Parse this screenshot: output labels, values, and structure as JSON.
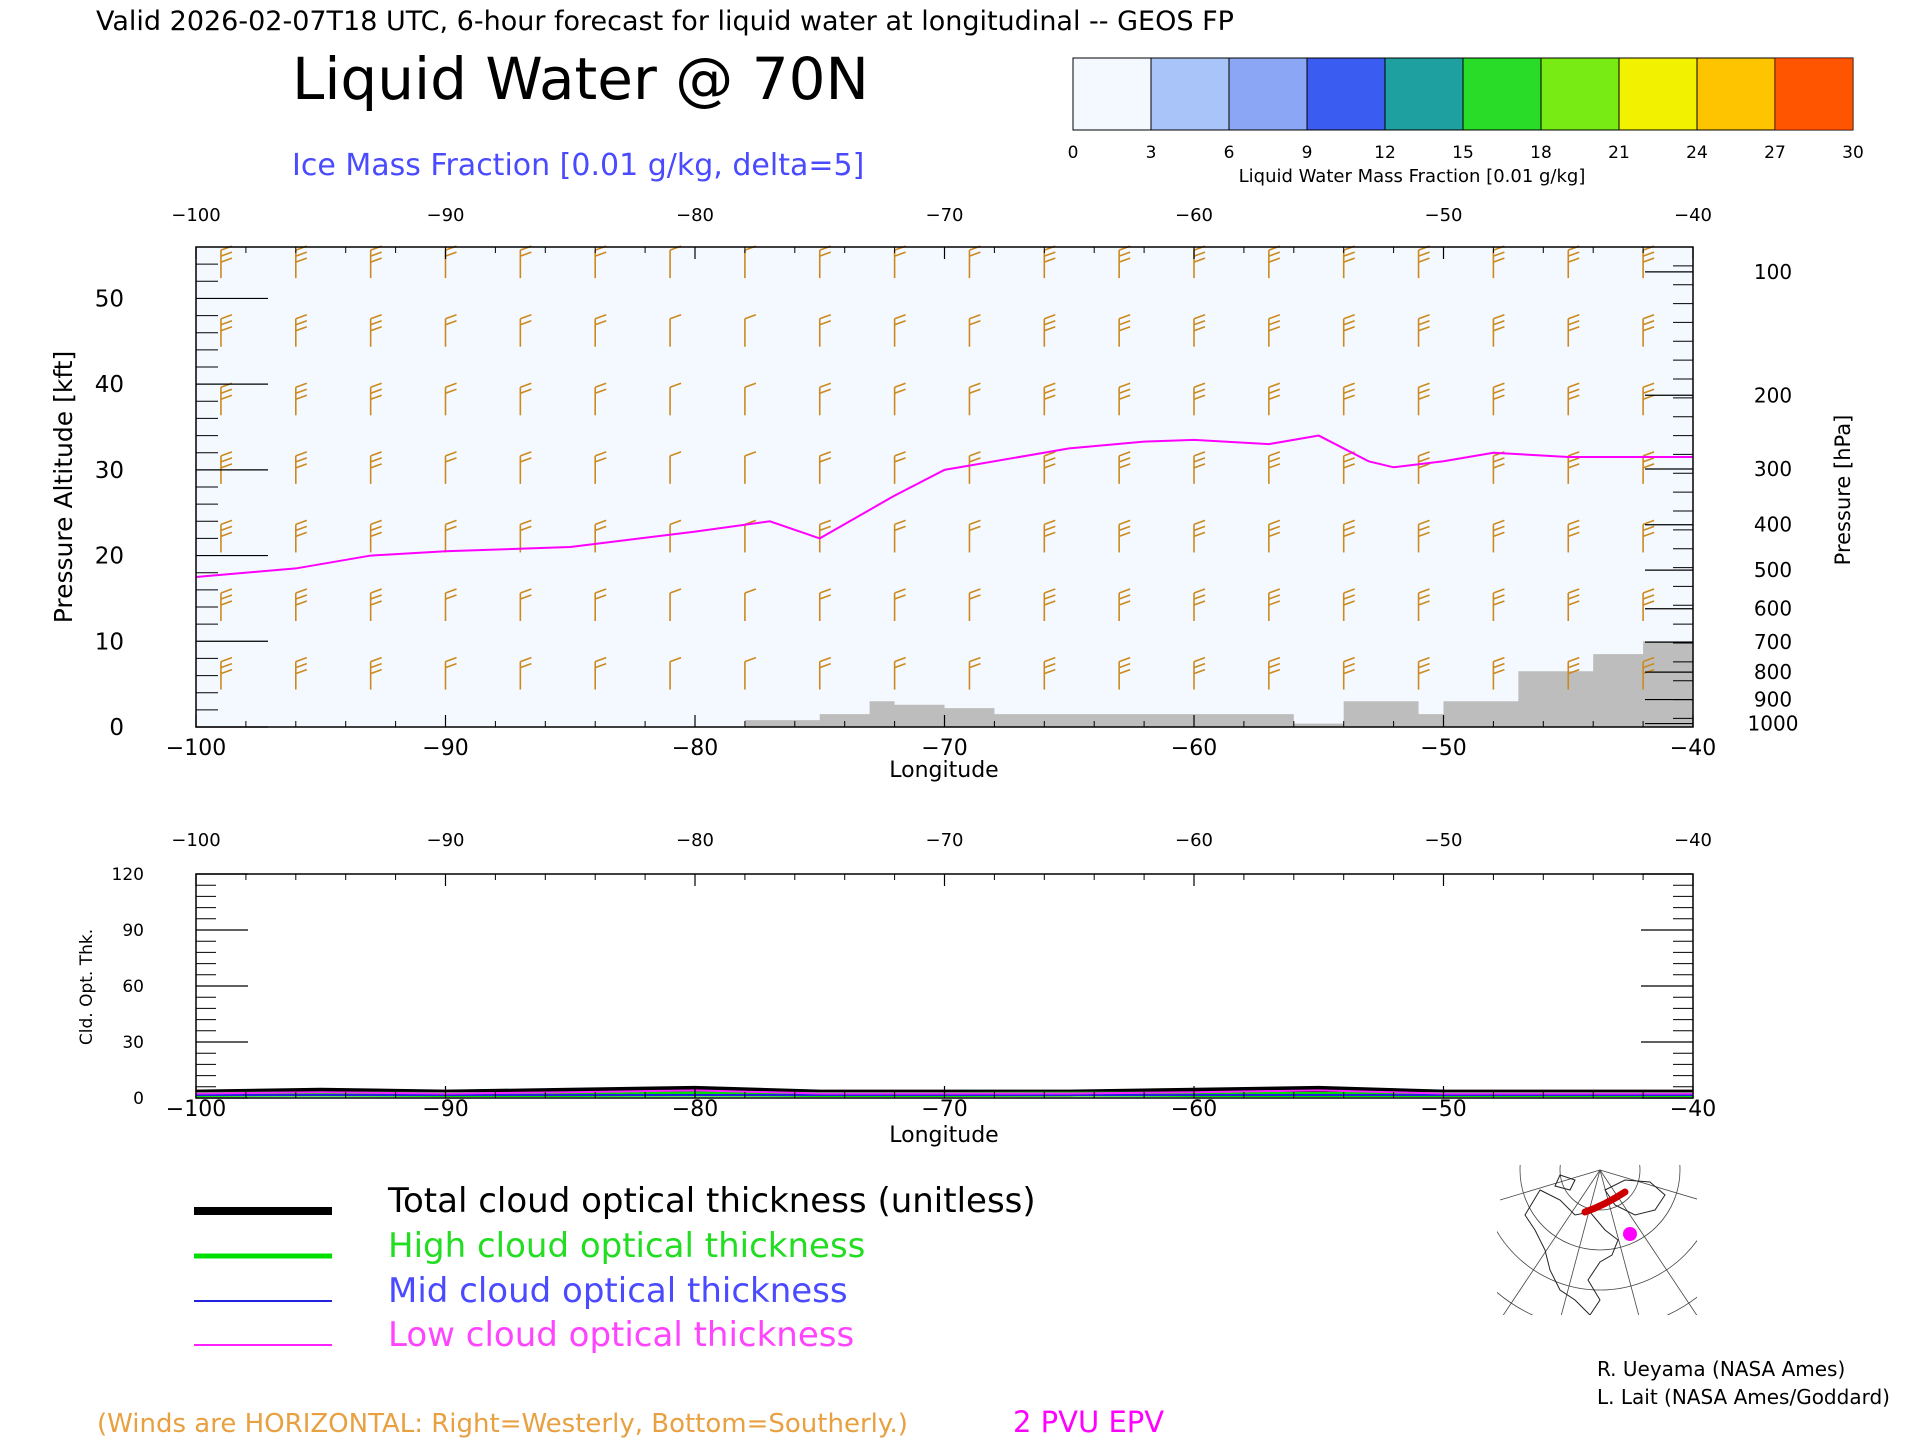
{
  "header": {
    "valid_line": "Valid 2026-02-07T18 UTC, 6-hour forecast for liquid water at longitudinal -- GEOS FP",
    "title": "Liquid Water @ 70N",
    "subtitle": "Ice Mass Fraction [0.01 g/kg, delta=5]"
  },
  "colorbar": {
    "ticks": [
      "0",
      "3",
      "6",
      "9",
      "12",
      "15",
      "18",
      "21",
      "24",
      "27",
      "30"
    ],
    "label": "Liquid Water Mass Fraction [0.01 g/kg]",
    "colors": [
      "#f4f8ff",
      "#a8c4f8",
      "#8aa6f4",
      "#3b5cf0",
      "#1ea0a0",
      "#28dc28",
      "#78ea14",
      "#f2f200",
      "#ffc400",
      "#ff8a00",
      "#ff2a00"
    ]
  },
  "colors": {
    "terrain": "#bdbdbd",
    "wind_barb": "#cc8a1e",
    "epv_line": "#ff00ff",
    "total": "#000000",
    "high": "#00e000",
    "mid": "#2222dd",
    "low": "#ff22ff",
    "subtitle": "#4a4aff",
    "winds_note": "#e8a040"
  },
  "chart_data": [
    {
      "type": "area",
      "name": "liquid-water-cross-section",
      "xlabel": "Longitude",
      "ylabel": "Pressure Altitude [kft]",
      "y2label": "Pressure [hPa]",
      "xlim": [
        -100,
        -40
      ],
      "ylim": [
        0,
        56
      ],
      "x_ticks": [
        "-100",
        "-90",
        "-80",
        "-70",
        "-60",
        "-50",
        "-40"
      ],
      "top_x_ticks": [
        "-100",
        "-90",
        "-80",
        "-70",
        "-60",
        "-50",
        "-40"
      ],
      "y_ticks": [
        "0",
        "10",
        "20",
        "30",
        "40",
        "50"
      ],
      "pressure_ticks": [
        "100",
        "200",
        "300",
        "400",
        "500",
        "600",
        "700",
        "800",
        "900",
        "1000"
      ],
      "pressure_tick_altitudes_kft": [
        53.1,
        38.7,
        30.1,
        23.6,
        18.3,
        13.8,
        9.9,
        6.4,
        3.2,
        0.4
      ],
      "epv_2pvu_line": {
        "x": [
          -100,
          -96,
          -93,
          -90,
          -85,
          -80,
          -77,
          -75,
          -72,
          -70,
          -65,
          -62,
          -60,
          -57,
          -55,
          -53,
          -52,
          -50,
          -48,
          -45,
          -40
        ],
        "y": [
          17.5,
          18.5,
          20,
          20.5,
          21,
          22.8,
          24,
          22,
          27,
          30,
          32.5,
          33.3,
          33.5,
          33,
          34,
          31,
          30.3,
          31,
          32,
          31.5,
          31.5
        ]
      },
      "terrain_kft": {
        "x": [
          -78,
          -75,
          -73,
          -72,
          -70,
          -68,
          -56,
          -54,
          -51,
          -50,
          -47,
          -44,
          -42,
          -40
        ],
        "y": [
          0.8,
          1.5,
          3,
          2.6,
          2.2,
          1.5,
          0.4,
          3,
          1.5,
          3,
          6.5,
          8.5,
          10,
          11.5
        ]
      },
      "wind_barbs": {
        "levels_kft": [
          54,
          46,
          38,
          30,
          22,
          14,
          6
        ],
        "longitudes": [
          -99,
          -96,
          -93,
          -90,
          -87,
          -84,
          -81,
          -78,
          -75,
          -72,
          -69,
          -66,
          -63,
          -60,
          -57,
          -54,
          -51,
          -48,
          -45,
          -42
        ],
        "speed_flags": [
          3,
          3,
          3,
          2,
          2,
          2,
          1,
          1,
          2,
          2,
          2,
          3,
          3,
          3,
          3,
          3,
          3,
          3,
          3,
          3
        ]
      },
      "liquid_water_max": 1
    },
    {
      "type": "line",
      "name": "cloud-optical-thickness",
      "xlabel": "Longitude",
      "ylabel": "Cld. Opt. Thk.",
      "xlim": [
        -100,
        -40
      ],
      "ylim": [
        0,
        120
      ],
      "x_ticks": [
        "-100",
        "-90",
        "-80",
        "-70",
        "-60",
        "-50",
        "-40"
      ],
      "top_x_ticks": [
        "-100",
        "-90",
        "-80",
        "-70",
        "-60",
        "-50",
        "-40"
      ],
      "y_ticks": [
        "0",
        "30",
        "60",
        "90",
        "120"
      ],
      "series": [
        {
          "name": "Total cloud optical thickness (unitless)",
          "x": [
            -100,
            -95,
            -90,
            -85,
            -80,
            -75,
            -70,
            -65,
            -60,
            -55,
            -50,
            -45,
            -40
          ],
          "values": [
            1,
            2,
            1,
            2,
            3,
            1,
            1,
            1,
            2,
            3,
            1,
            1,
            1
          ]
        },
        {
          "name": "High cloud optical thickness",
          "x": [
            -100,
            -95,
            -90,
            -85,
            -80,
            -75,
            -70,
            -65,
            -60,
            -55,
            -50,
            -45,
            -40
          ],
          "values": [
            0.3,
            0.5,
            0.3,
            0.3,
            0.5,
            0.3,
            0.3,
            0.5,
            0.3,
            0.3,
            0.3,
            0.3,
            0.3
          ]
        },
        {
          "name": "Mid cloud optical thickness",
          "x": [
            -100,
            -95,
            -90,
            -85,
            -80,
            -75,
            -70,
            -65,
            -60,
            -55,
            -50,
            -45,
            -40
          ],
          "values": [
            0,
            0,
            0,
            0,
            0,
            0,
            0,
            0,
            0,
            0,
            0,
            0,
            0
          ]
        },
        {
          "name": "Low cloud optical thickness",
          "x": [
            -100,
            -95,
            -90,
            -85,
            -80,
            -75,
            -70,
            -65,
            -60,
            -55,
            -50,
            -45,
            -40
          ],
          "values": [
            0.8,
            1.5,
            0.8,
            1.5,
            2.5,
            0.8,
            0.8,
            0.8,
            1.5,
            2.5,
            0.8,
            0.8,
            0.8
          ]
        }
      ]
    }
  ],
  "legend": {
    "total": "Total cloud optical thickness (unitless)",
    "high": "High cloud optical thickness",
    "mid": "Mid cloud optical thickness",
    "low": "Low cloud optical thickness"
  },
  "footer": {
    "winds_note": "(Winds are HORIZONTAL: Right=Westerly, Bottom=Southerly.)",
    "epv_label": "2 PVU EPV",
    "credit1": "R. Ueyama (NASA Ames)",
    "credit2": "L. Lait (NASA Ames/Goddard)"
  },
  "inset_map": {
    "marker_color": "#ff00ff",
    "track_color": "#cc0000"
  }
}
